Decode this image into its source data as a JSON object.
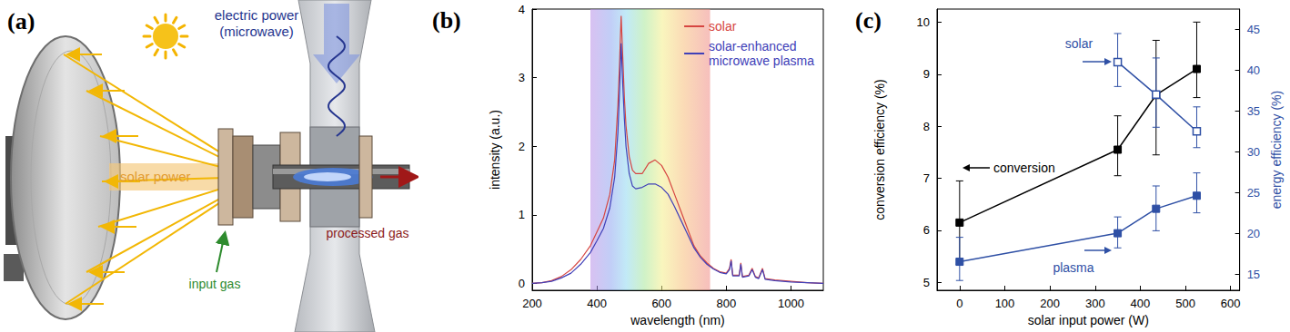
{
  "diagram": {
    "title": "(a)",
    "texts": {
      "solar_power": "solar power",
      "electric_power": [
        "electric power",
        "(microwave)"
      ],
      "input_gas": "input gas",
      "processed_gas": "processed gas"
    }
  },
  "chart_data": [
    {
      "title": "(b)",
      "type": "line",
      "x_label": "wavelength (nm)",
      "y_label": "intensity (a.u.)",
      "x": [
        200,
        230,
        260,
        290,
        320,
        350,
        380,
        400,
        420,
        440,
        455,
        465,
        470,
        475,
        480,
        485,
        490,
        500,
        510,
        520,
        540,
        560,
        580,
        600,
        620,
        640,
        660,
        680,
        700,
        720,
        740,
        760,
        780,
        800,
        810,
        815,
        820,
        840,
        845,
        850,
        870,
        880,
        890,
        900,
        912,
        920,
        950,
        1000,
        1050,
        1100
      ],
      "xlim": [
        200,
        1100
      ],
      "xticks": [
        200,
        400,
        600,
        800,
        1000
      ],
      "ylim": [
        -0.1,
        4
      ],
      "yticks": [
        0,
        1,
        2,
        3,
        4
      ],
      "visible_band": [
        380,
        750
      ],
      "grid": false,
      "legend": "upper right",
      "series": [
        {
          "name": "solar",
          "color": "#d64541",
          "values": [
            0,
            0.01,
            0.04,
            0.1,
            0.2,
            0.35,
            0.55,
            0.75,
            0.95,
            1.3,
            1.8,
            2.6,
            3.2,
            3.9,
            3.3,
            2.7,
            2.3,
            1.85,
            1.65,
            1.6,
            1.6,
            1.75,
            1.8,
            1.72,
            1.55,
            1.3,
            1.05,
            0.8,
            0.55,
            0.4,
            0.3,
            0.22,
            0.17,
            0.15,
            0.22,
            0.35,
            0.12,
            0.12,
            0.3,
            0.1,
            0.12,
            0.22,
            0.1,
            0.08,
            0.22,
            0.07,
            0.05,
            0.03,
            0.01,
            0
          ]
        },
        {
          "name": "solar-enhanced microwave plasma",
          "color": "#4040b8",
          "values": [
            0,
            0.01,
            0.03,
            0.08,
            0.15,
            0.28,
            0.45,
            0.62,
            0.8,
            1.1,
            1.55,
            2.2,
            2.8,
            3.5,
            2.9,
            2.4,
            2.0,
            1.6,
            1.42,
            1.38,
            1.4,
            1.45,
            1.45,
            1.4,
            1.3,
            1.12,
            0.92,
            0.72,
            0.52,
            0.38,
            0.28,
            0.21,
            0.16,
            0.14,
            0.2,
            0.33,
            0.11,
            0.11,
            0.28,
            0.09,
            0.11,
            0.2,
            0.09,
            0.07,
            0.2,
            0.06,
            0.04,
            0.02,
            0.01,
            0
          ]
        }
      ]
    },
    {
      "title": "(c)",
      "type": "line",
      "x_label": "solar input power (W)",
      "y_label": "conversion efficiency (%)",
      "y2_label": "energy efficiency (%)",
      "xlim": [
        -50,
        620
      ],
      "xticks": [
        0,
        100,
        200,
        300,
        400,
        500,
        600
      ],
      "ylim": [
        4.85,
        10.25
      ],
      "yticks": [
        5,
        6,
        7,
        8,
        9,
        10
      ],
      "y2lim": [
        13,
        47.5
      ],
      "y2ticks": [
        15,
        20,
        25,
        30,
        35,
        40,
        45
      ],
      "grid": false,
      "series": [
        {
          "name": "conversion",
          "color": "#000000",
          "marker": "square",
          "x": [
            0,
            350,
            435,
            525
          ],
          "values": [
            6.15,
            7.55,
            8.6,
            9.1
          ],
          "error_low": [
            5.35,
            7.05,
            7.45,
            8.55
          ],
          "error_high": [
            6.95,
            8.2,
            9.65,
            10.0
          ]
        },
        {
          "name": "solar",
          "axis": "y2",
          "color": "#2f50a5",
          "marker": "open square",
          "x": [
            350,
            435,
            525
          ],
          "values": [
            41,
            37,
            32.5
          ],
          "error_low": [
            38,
            33,
            30.5
          ],
          "error_high": [
            44.5,
            41.5,
            35.5
          ]
        },
        {
          "name": "plasma",
          "axis": "y2",
          "color": "#2f50a5",
          "marker": "square",
          "x": [
            0,
            350,
            435,
            525
          ],
          "values": [
            16.5,
            20,
            23,
            24.6
          ],
          "error_low": [
            14.2,
            18.2,
            20.3,
            22.5
          ],
          "error_high": [
            19.5,
            22,
            25.8,
            27.4
          ]
        }
      ]
    }
  ]
}
